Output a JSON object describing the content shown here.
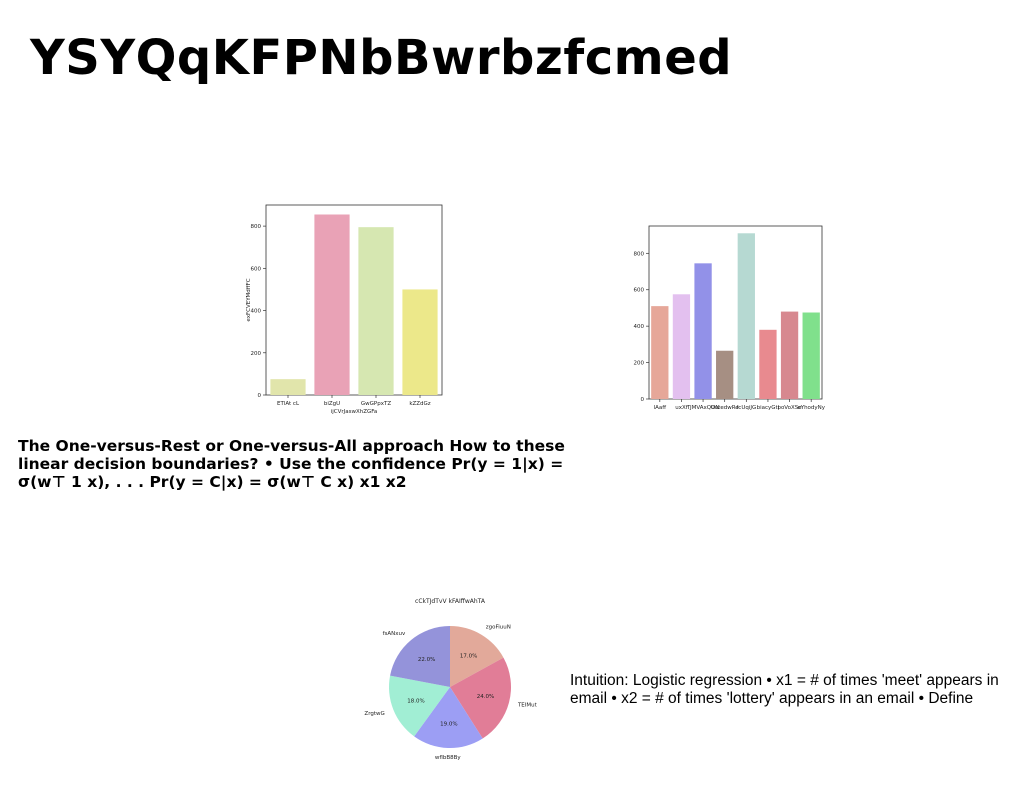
{
  "slide": {
    "title": "YSYQqKFPNbBwrbzfcmed",
    "body_text": "The One-versus-Rest or One-versus-All approach How to these linear decision boundaries? • Use the confidence Pr(y = 1|x) = σ(w⊤ 1 x), . . . Pr(y = C|x) = σ(w⊤ C x) x1 x2",
    "side_text": "Intuition: Logistic regression • x1 = # of times 'meet' appears in email • x2 = # of times 'lottery' appears in an email • Define"
  },
  "chart_data": [
    {
      "type": "bar",
      "title": "",
      "xlabel": "ijCVrJaswXhZGFa",
      "ylabel": "exFCVEYMdffFC",
      "categories": [
        "ETlAt cL",
        "biZgU",
        "GwGPpxTZ",
        "kZZdGz"
      ],
      "values": [
        75,
        855,
        795,
        500
      ],
      "colors": [
        "#e1e5ab",
        "#e9a2b6",
        "#d6e7b1",
        "#ece88a"
      ],
      "ylim": [
        0,
        900
      ],
      "yticks": [
        0,
        200,
        400,
        600,
        800
      ]
    },
    {
      "type": "bar",
      "title": "",
      "xlabel": "",
      "ylabel": "",
      "categories": [
        "lAaff",
        "uxXf",
        "TJMVAxQON",
        "UutedwRe",
        "fcUqiJG",
        "biacyGtl",
        "poVoXSe",
        "eYhodyNy"
      ],
      "values": [
        510,
        575,
        745,
        265,
        910,
        380,
        480,
        475
      ],
      "colors": [
        "#e6a799",
        "#e3c0ef",
        "#9291e8",
        "#a68f83",
        "#b6d9d2",
        "#e88a8f",
        "#d7888f",
        "#80e08c"
      ],
      "ylim": [
        0,
        950
      ],
      "yticks": [
        0,
        200,
        400,
        600,
        800
      ]
    },
    {
      "type": "pie",
      "title": "cCkTJdTvV kFAIffwAhTA",
      "labels": [
        "zgoFiuuN",
        "TEIMut",
        "wflbB8By",
        "ZrgtwG",
        "fsANxuv"
      ],
      "values": [
        17.0,
        24.0,
        19.0,
        18.0,
        22.0
      ],
      "value_labels": [
        "17.0%",
        "24.0%",
        "19.0%",
        "18.0%",
        "22.0%"
      ],
      "colors": [
        "#e2a99a",
        "#e17d97",
        "#9c9ef4",
        "#a1eed4",
        "#9493da"
      ]
    }
  ]
}
